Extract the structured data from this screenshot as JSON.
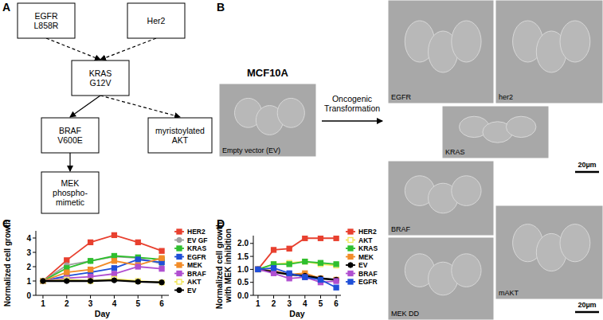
{
  "panel_labels": [
    "A",
    "B",
    "C",
    "D"
  ],
  "diagram": {
    "nodes": [
      {
        "label": "EGFR\nL858R"
      },
      {
        "label": "Her2"
      },
      {
        "label": "KRAS\nG12V"
      },
      {
        "label": "BRAF\nV600E"
      },
      {
        "label": "myristoylated\nAKT"
      },
      {
        "label": "MEK\nphospho-\nmimetic"
      }
    ],
    "edges": [
      {
        "from": 0,
        "to": 2,
        "line_style": "dashed"
      },
      {
        "from": 1,
        "to": 2,
        "line_style": "dashed"
      },
      {
        "from": 2,
        "to": 3,
        "line_style": "solid"
      },
      {
        "from": 2,
        "to": 4,
        "line_style": "dashed"
      },
      {
        "from": 3,
        "to": 5,
        "line_style": "solid"
      }
    ]
  },
  "images": {
    "title": "MCF10A",
    "arrow_label": "Oncogenic\nTransformation",
    "panels": [
      "Empty vector (EV)",
      "EGFR",
      "her2",
      "KRAS",
      "BRAF",
      "MEK DD",
      "mAKT"
    ],
    "scale_bar": "20µm"
  },
  "chart_data": [
    {
      "type": "line",
      "x_label": "Day",
      "y_label": "Normalized cell growth",
      "x": [
        1,
        2,
        3,
        4,
        5,
        6
      ],
      "xlim": [
        0.7,
        6.3
      ],
      "xticks": [
        1,
        2,
        3,
        4,
        5,
        6
      ],
      "ylim": [
        0,
        4.5
      ],
      "yticks": [
        0,
        1,
        2,
        3,
        4
      ],
      "grid": false,
      "legend": "right",
      "series": [
        {
          "name": "HER2",
          "color": "#e8402f",
          "marker": "square",
          "values": [
            1,
            2.45,
            3.7,
            4.2,
            3.7,
            3.1
          ]
        },
        {
          "name": "EV GF",
          "color": "#a0a0a0",
          "marker": "circle",
          "values": [
            1,
            2.1,
            2.4,
            2.7,
            2.6,
            2.2
          ]
        },
        {
          "name": "KRAS",
          "color": "#2fbf2f",
          "marker": "square",
          "values": [
            1,
            1.9,
            2.4,
            2.75,
            2.65,
            2.5
          ]
        },
        {
          "name": "EGFR",
          "color": "#1f4fd8",
          "marker": "square",
          "values": [
            1,
            1.35,
            1.6,
            1.9,
            2.5,
            2.3
          ]
        },
        {
          "name": "MEK",
          "color": "#f28c28",
          "marker": "square",
          "values": [
            1,
            1.6,
            1.8,
            2.4,
            2.1,
            2.6
          ]
        },
        {
          "name": "BRAF",
          "color": "#b04fd0",
          "marker": "square",
          "values": [
            1,
            1.2,
            1.3,
            1.5,
            2.0,
            1.85
          ]
        },
        {
          "name": "AKT",
          "color": "#f2e65a",
          "marker": "open_square",
          "values": [
            1,
            1.1,
            1.0,
            1.15,
            1.0,
            0.9
          ]
        },
        {
          "name": "EV",
          "color": "#000000",
          "marker": "circle",
          "values": [
            1,
            1.0,
            1.0,
            1.05,
            0.95,
            0.9
          ]
        }
      ]
    },
    {
      "type": "line",
      "x_label": "Day",
      "y_label": "Normalized cell growth\nwith MEK inhibition",
      "x": [
        1,
        2,
        3,
        4,
        5,
        6
      ],
      "xlim": [
        0.7,
        6.3
      ],
      "xticks": [
        1,
        2,
        3,
        4,
        5,
        6
      ],
      "ylim": [
        0,
        2.3
      ],
      "yticks": [
        {
          "value": 0,
          "label": "0.0"
        },
        {
          "value": 0.5,
          "label": "0.5"
        },
        {
          "value": 1,
          "label": "1.0"
        },
        {
          "value": 1.5,
          "label": "1.5"
        },
        {
          "value": 2,
          "label": "2.0"
        }
      ],
      "grid": false,
      "legend": "right",
      "series": [
        {
          "name": "HER2",
          "color": "#e8402f",
          "marker": "square",
          "values": [
            1,
            1.75,
            1.8,
            2.2,
            2.2,
            2.2
          ]
        },
        {
          "name": "AKT",
          "color": "#f2e65a",
          "marker": "open_square",
          "values": [
            1,
            1.2,
            1.25,
            1.3,
            1.2,
            1.15
          ]
        },
        {
          "name": "KRAS",
          "color": "#2fbf2f",
          "marker": "square",
          "values": [
            1,
            1.2,
            1.2,
            1.3,
            1.25,
            1.2
          ]
        },
        {
          "name": "MEK",
          "color": "#f28c28",
          "marker": "square",
          "values": [
            1,
            0.95,
            0.8,
            0.85,
            0.65,
            0.6
          ]
        },
        {
          "name": "EV",
          "color": "#000000",
          "marker": "circle",
          "values": [
            1,
            0.9,
            0.8,
            0.75,
            0.65,
            0.6
          ]
        },
        {
          "name": "BRAF",
          "color": "#b04fd0",
          "marker": "square",
          "values": [
            1,
            0.85,
            0.65,
            0.7,
            0.5,
            0.55
          ]
        },
        {
          "name": "EGFR",
          "color": "#1f4fd8",
          "marker": "square",
          "values": [
            1,
            1.05,
            0.85,
            0.7,
            0.6,
            0.3
          ]
        }
      ]
    }
  ]
}
